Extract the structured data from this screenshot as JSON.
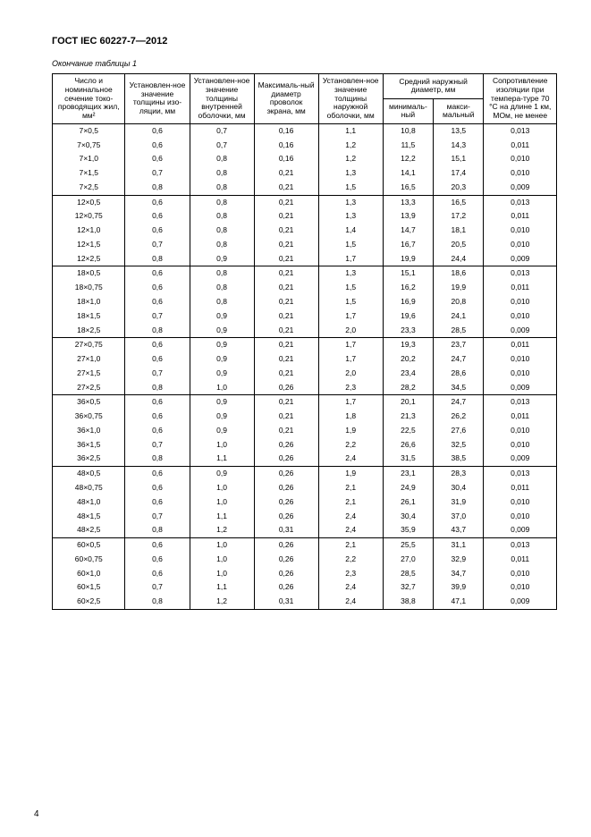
{
  "doc_title": "ГОСТ IEC 60227-7—2012",
  "caption": "Окончание таблицы 1",
  "page_number": "4",
  "headers": {
    "c1": "Число и номинальное сечение токо-проводящих жил, мм²",
    "c2": "Установлен-ное значение толщины изо-ляции, мм",
    "c3": "Установлен-ное значение толщины внутренней оболочки, мм",
    "c4": "Максималь-ный диаметр проволок экрана, мм",
    "c5": "Установлен-ное значение толщины наружной оболочки, мм",
    "c6_top": "Средний наружный диаметр, мм",
    "c6a": "минималь-ный",
    "c6b": "макси-мальный",
    "c8": "Сопротивление изоляции при темпера-туре 70 °С на длине 1 км, МОм, не менее"
  },
  "groups": [
    [
      [
        "7×0,5",
        "0,6",
        "0,7",
        "0,16",
        "1,1",
        "10,8",
        "13,5",
        "0,013"
      ],
      [
        "7×0,75",
        "0,6",
        "0,7",
        "0,16",
        "1,2",
        "11,5",
        "14,3",
        "0,011"
      ],
      [
        "7×1,0",
        "0,6",
        "0,8",
        "0,16",
        "1,2",
        "12,2",
        "15,1",
        "0,010"
      ],
      [
        "7×1,5",
        "0,7",
        "0,8",
        "0,21",
        "1,3",
        "14,1",
        "17,4",
        "0,010"
      ],
      [
        "7×2,5",
        "0,8",
        "0,8",
        "0,21",
        "1,5",
        "16,5",
        "20,3",
        "0,009"
      ]
    ],
    [
      [
        "12×0,5",
        "0,6",
        "0,8",
        "0,21",
        "1,3",
        "13,3",
        "16,5",
        "0,013"
      ],
      [
        "12×0,75",
        "0,6",
        "0,8",
        "0,21",
        "1,3",
        "13,9",
        "17,2",
        "0,011"
      ],
      [
        "12×1,0",
        "0,6",
        "0,8",
        "0,21",
        "1,4",
        "14,7",
        "18,1",
        "0,010"
      ],
      [
        "12×1,5",
        "0,7",
        "0,8",
        "0,21",
        "1,5",
        "16,7",
        "20,5",
        "0,010"
      ],
      [
        "12×2,5",
        "0,8",
        "0,9",
        "0,21",
        "1,7",
        "19,9",
        "24,4",
        "0,009"
      ]
    ],
    [
      [
        "18×0,5",
        "0,6",
        "0,8",
        "0,21",
        "1,3",
        "15,1",
        "18,6",
        "0,013"
      ],
      [
        "18×0,75",
        "0,6",
        "0,8",
        "0,21",
        "1,5",
        "16,2",
        "19,9",
        "0,011"
      ],
      [
        "18×1,0",
        "0,6",
        "0,8",
        "0,21",
        "1,5",
        "16,9",
        "20,8",
        "0,010"
      ],
      [
        "18×1,5",
        "0,7",
        "0,9",
        "0,21",
        "1,7",
        "19,6",
        "24,1",
        "0,010"
      ],
      [
        "18×2,5",
        "0,8",
        "0,9",
        "0,21",
        "2,0",
        "23,3",
        "28,5",
        "0,009"
      ]
    ],
    [
      [
        "27×0,75",
        "0,6",
        "0,9",
        "0,21",
        "1,7",
        "19,3",
        "23,7",
        "0,011"
      ],
      [
        "27×1,0",
        "0,6",
        "0,9",
        "0,21",
        "1,7",
        "20,2",
        "24,7",
        "0,010"
      ],
      [
        "27×1,5",
        "0,7",
        "0,9",
        "0,21",
        "2,0",
        "23,4",
        "28,6",
        "0,010"
      ],
      [
        "27×2,5",
        "0,8",
        "1,0",
        "0,26",
        "2,3",
        "28,2",
        "34,5",
        "0,009"
      ]
    ],
    [
      [
        "36×0,5",
        "0,6",
        "0,9",
        "0,21",
        "1,7",
        "20,1",
        "24,7",
        "0,013"
      ],
      [
        "36×0,75",
        "0,6",
        "0,9",
        "0,21",
        "1,8",
        "21,3",
        "26,2",
        "0,011"
      ],
      [
        "36×1,0",
        "0,6",
        "0,9",
        "0,21",
        "1,9",
        "22,5",
        "27,6",
        "0,010"
      ],
      [
        "36×1,5",
        "0,7",
        "1,0",
        "0,26",
        "2,2",
        "26,6",
        "32,5",
        "0,010"
      ],
      [
        "36×2,5",
        "0,8",
        "1,1",
        "0,26",
        "2,4",
        "31,5",
        "38,5",
        "0,009"
      ]
    ],
    [
      [
        "48×0,5",
        "0,6",
        "0,9",
        "0,26",
        "1,9",
        "23,1",
        "28,3",
        "0,013"
      ],
      [
        "48×0,75",
        "0,6",
        "1,0",
        "0,26",
        "2,1",
        "24,9",
        "30,4",
        "0,011"
      ],
      [
        "48×1,0",
        "0,6",
        "1,0",
        "0,26",
        "2,1",
        "26,1",
        "31,9",
        "0,010"
      ],
      [
        "48×1,5",
        "0,7",
        "1,1",
        "0,26",
        "2,4",
        "30,4",
        "37,0",
        "0,010"
      ],
      [
        "48×2,5",
        "0,8",
        "1,2",
        "0,31",
        "2,4",
        "35,9",
        "43,7",
        "0,009"
      ]
    ],
    [
      [
        "60×0,5",
        "0,6",
        "1,0",
        "0,26",
        "2,1",
        "25,5",
        "31,1",
        "0,013"
      ],
      [
        "60×0,75",
        "0,6",
        "1,0",
        "0,26",
        "2,2",
        "27,0",
        "32,9",
        "0,011"
      ],
      [
        "60×1,0",
        "0,6",
        "1,0",
        "0,26",
        "2,3",
        "28,5",
        "34,7",
        "0,010"
      ],
      [
        "60×1,5",
        "0,7",
        "1,1",
        "0,26",
        "2,4",
        "32,7",
        "39,9",
        "0,010"
      ],
      [
        "60×2,5",
        "0,8",
        "1,2",
        "0,31",
        "2,4",
        "38,8",
        "47,1",
        "0,009"
      ]
    ]
  ]
}
